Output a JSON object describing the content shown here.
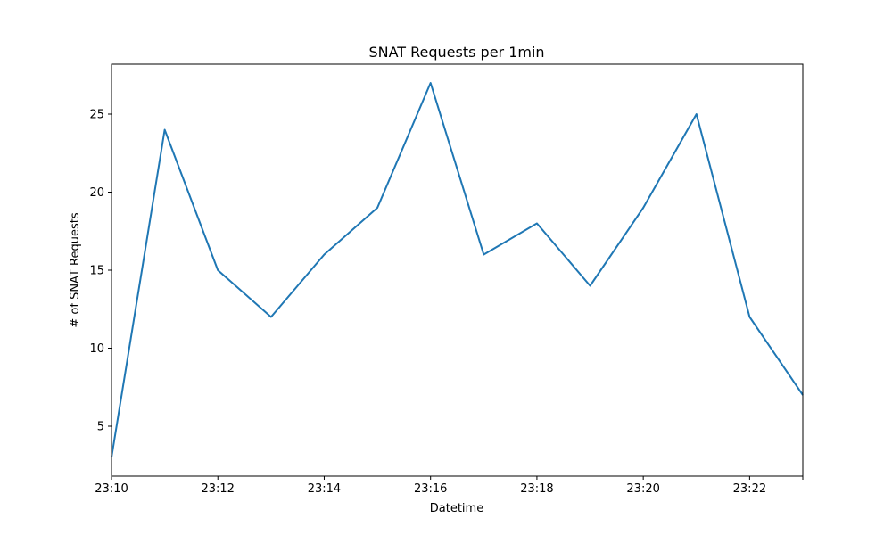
{
  "chart_data": {
    "type": "line",
    "title": "SNAT Requests per 1min",
    "xlabel": "Datetime",
    "ylabel": "# of SNAT Requests",
    "x": [
      "23:10",
      "23:11",
      "23:12",
      "23:13",
      "23:14",
      "23:15",
      "23:16",
      "23:17",
      "23:18",
      "23:19",
      "23:20",
      "23:21",
      "23:22",
      "23:23"
    ],
    "x_tick_labels": [
      "23:10",
      "23:12",
      "23:14",
      "23:16",
      "23:18",
      "23:20",
      "23:22"
    ],
    "series": [
      {
        "values": [
          3,
          24,
          15,
          12,
          16,
          19,
          27,
          16,
          18,
          14,
          19,
          25,
          12,
          7
        ],
        "color": "#1f77b4"
      }
    ],
    "xlim": [
      "23:10",
      "23:23"
    ],
    "ylim": [
      1.8,
      28.2
    ],
    "y_ticks": [
      5,
      10,
      15,
      20,
      25
    ],
    "grid": false,
    "axis_color": "#000000"
  }
}
